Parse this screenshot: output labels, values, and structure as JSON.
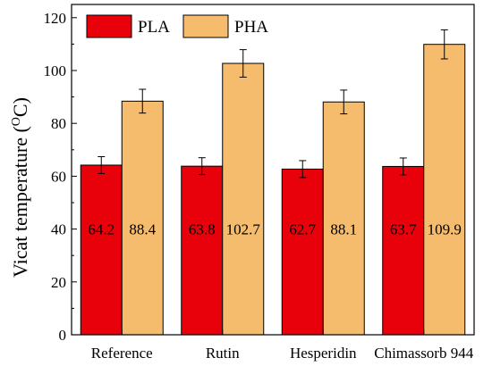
{
  "chart_data": {
    "type": "bar",
    "categories": [
      "Reference",
      "Rutin",
      "Hesperidin",
      "Chimassorb 944"
    ],
    "series": [
      {
        "name": "PLA",
        "values": [
          64.2,
          63.8,
          62.7,
          63.7
        ],
        "errors": [
          3.2,
          3.2,
          3.2,
          3.2
        ],
        "color": "#e8000b"
      },
      {
        "name": "PHA",
        "values": [
          88.4,
          102.7,
          88.1,
          109.9
        ],
        "errors": [
          4.5,
          5.2,
          4.5,
          5.5
        ],
        "color": "#f5bc6e"
      }
    ],
    "value_labels": [
      "64.2",
      "63.8",
      "62.7",
      "63.7",
      "88.4",
      "102.7",
      "88.1",
      "109.9"
    ],
    "ylabel": "Vicat temperature (",
    "ylabel_unit_sup": "O",
    "ylabel_unit": "C)",
    "ylim": [
      0,
      125
    ],
    "yticks": [
      0,
      20,
      40,
      60,
      80,
      100,
      120
    ],
    "legend_position": "top-left",
    "grid": false
  }
}
